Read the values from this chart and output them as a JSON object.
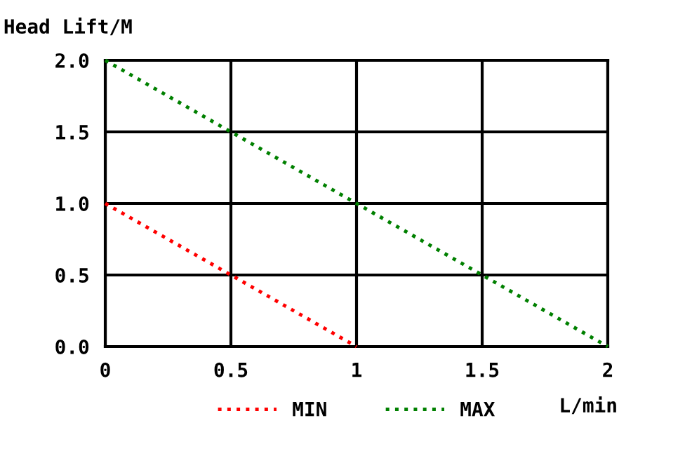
{
  "chart_data": {
    "type": "line",
    "xlabel": "L/min",
    "ylabel": "Head Lift/M",
    "series": [
      {
        "name": "MIN",
        "color": "#ff0000",
        "x": [
          0,
          1
        ],
        "values": [
          1.0,
          0.0
        ]
      },
      {
        "name": "MAX",
        "color": "#008000",
        "x": [
          0,
          2
        ],
        "values": [
          2.0,
          0.0
        ]
      }
    ],
    "xlim": [
      0,
      2
    ],
    "xticks": [
      0,
      0.5,
      1,
      1.5,
      2
    ],
    "ylim": [
      0,
      2.0
    ],
    "yticks": [
      {
        "value": 0,
        "label": "0.0"
      },
      {
        "value": 0.5,
        "label": "0.5"
      },
      {
        "value": 1.0,
        "label": "1.0"
      },
      {
        "value": 1.5,
        "label": "1.5"
      },
      {
        "value": 2.0,
        "label": "2.0"
      }
    ],
    "grid": true,
    "legend": "bottom",
    "line_style": "dotted",
    "marker": "none"
  }
}
